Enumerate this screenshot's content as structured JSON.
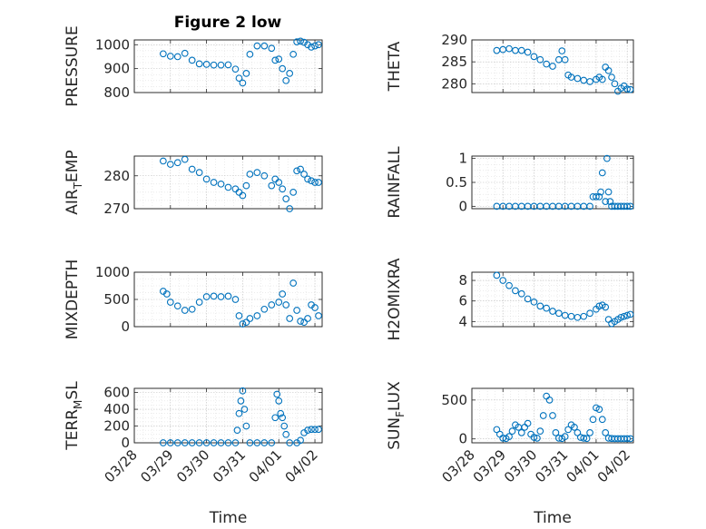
{
  "figure": {
    "title": "Figure 2 low",
    "marker_color": "#0072BD"
  },
  "chart_data": [
    {
      "type": "scatter",
      "ylabel_main": "PRESSURE",
      "ylabel_sub": "",
      "ylabel_tail": "",
      "xlabel": "",
      "xlim": [
        0,
        5.2
      ],
      "ylim": [
        800,
        1020
      ],
      "yticks": [
        800,
        900,
        1000
      ],
      "ytick_labels": [
        "800",
        "900",
        "1000"
      ],
      "xticks": [
        0,
        1,
        2,
        3,
        4,
        5
      ],
      "xtick_labels": [],
      "x": [
        0.8,
        1.0,
        1.2,
        1.4,
        1.6,
        1.8,
        2.0,
        2.2,
        2.4,
        2.6,
        2.8,
        2.9,
        3.0,
        3.1,
        3.2,
        3.4,
        3.6,
        3.8,
        3.9,
        4.0,
        4.1,
        4.2,
        4.3,
        4.4,
        4.5,
        4.6,
        4.7,
        4.8,
        4.9,
        5.0,
        5.1
      ],
      "y": [
        962,
        952,
        950,
        964,
        935,
        920,
        918,
        915,
        915,
        916,
        898,
        860,
        840,
        880,
        960,
        995,
        995,
        985,
        935,
        940,
        900,
        850,
        880,
        960,
        1012,
        1015,
        1010,
        1000,
        990,
        995,
        1000
      ]
    },
    {
      "type": "scatter",
      "ylabel_main": "THETA",
      "ylabel_sub": "",
      "ylabel_tail": "",
      "xlabel": "",
      "xlim": [
        0,
        5.2
      ],
      "ylim": [
        278,
        290
      ],
      "yticks": [
        280,
        285,
        290
      ],
      "ytick_labels": [
        "280",
        "285",
        "290"
      ],
      "xticks": [
        0,
        1,
        2,
        3,
        4,
        5
      ],
      "xtick_labels": [],
      "x": [
        0.8,
        1.0,
        1.2,
        1.4,
        1.6,
        1.8,
        2.0,
        2.2,
        2.4,
        2.6,
        2.8,
        2.9,
        3.0,
        3.1,
        3.2,
        3.4,
        3.6,
        3.8,
        4.0,
        4.1,
        4.2,
        4.3,
        4.4,
        4.5,
        4.6,
        4.7,
        4.8,
        4.9,
        5.0,
        5.1
      ],
      "y": [
        287.6,
        287.8,
        288.0,
        287.6,
        287.6,
        287.2,
        286.2,
        285.5,
        284.5,
        284.0,
        285.5,
        287.5,
        285.5,
        282.0,
        281.5,
        281.2,
        280.8,
        280.5,
        281.0,
        281.5,
        281.0,
        283.8,
        283.0,
        281.5,
        280.0,
        278.3,
        279.0,
        279.5,
        278.8,
        278.7
      ]
    },
    {
      "type": "scatter",
      "ylabel_main": "AIR",
      "ylabel_sub": "T",
      "ylabel_tail": "EMP",
      "xlabel": "",
      "xlim": [
        0,
        5.2
      ],
      "ylim": [
        270,
        286
      ],
      "yticks": [
        270,
        280
      ],
      "ytick_labels": [
        "270",
        "280"
      ],
      "xticks": [
        0,
        1,
        2,
        3,
        4,
        5
      ],
      "xtick_labels": [],
      "x": [
        0.8,
        1.0,
        1.2,
        1.4,
        1.6,
        1.8,
        2.0,
        2.2,
        2.4,
        2.6,
        2.8,
        2.9,
        3.0,
        3.1,
        3.2,
        3.4,
        3.6,
        3.8,
        3.9,
        4.0,
        4.1,
        4.2,
        4.3,
        4.4,
        4.5,
        4.6,
        4.7,
        4.8,
        4.9,
        5.0,
        5.1
      ],
      "y": [
        284.5,
        283.5,
        284.0,
        285.0,
        282.0,
        281.0,
        279.0,
        278.0,
        277.5,
        276.5,
        276.0,
        275.0,
        274.0,
        277.0,
        280.5,
        281.0,
        280.0,
        277.0,
        279.0,
        278.0,
        276.0,
        273.0,
        270.0,
        275.0,
        281.5,
        282.0,
        280.5,
        279.0,
        278.5,
        278.0,
        278.0
      ]
    },
    {
      "type": "scatter",
      "ylabel_main": "RAINFALL",
      "ylabel_sub": "",
      "ylabel_tail": "",
      "xlabel": "",
      "xlim": [
        0,
        5.2
      ],
      "ylim": [
        -0.05,
        1.05
      ],
      "yticks": [
        0,
        0.5,
        1
      ],
      "ytick_labels": [
        "0",
        "0.5",
        "1"
      ],
      "xticks": [
        0,
        1,
        2,
        3,
        4,
        5
      ],
      "xtick_labels": [],
      "x": [
        0.8,
        1.0,
        1.2,
        1.4,
        1.6,
        1.8,
        2.0,
        2.2,
        2.4,
        2.6,
        2.8,
        3.0,
        3.2,
        3.4,
        3.6,
        3.8,
        3.9,
        4.0,
        4.1,
        4.15,
        4.2,
        4.3,
        4.35,
        4.4,
        4.45,
        4.5,
        4.6,
        4.7,
        4.8,
        4.9,
        5.0,
        5.1
      ],
      "y": [
        0,
        0,
        0,
        0,
        0,
        0,
        0,
        0,
        0,
        0,
        0,
        0,
        0,
        0,
        0,
        0,
        0.2,
        0.2,
        0.2,
        0.3,
        0.7,
        0.1,
        1.0,
        0.3,
        0.1,
        0,
        0,
        0,
        0,
        0,
        0,
        0
      ]
    },
    {
      "type": "scatter",
      "ylabel_main": "MIXDEPTH",
      "ylabel_sub": "",
      "ylabel_tail": "",
      "xlabel": "",
      "xlim": [
        0,
        5.2
      ],
      "ylim": [
        0,
        1000
      ],
      "yticks": [
        0,
        500,
        1000
      ],
      "ytick_labels": [
        "0",
        "500",
        "1000"
      ],
      "xticks": [
        0,
        1,
        2,
        3,
        4,
        5
      ],
      "xtick_labels": [],
      "x": [
        0.8,
        0.9,
        1.0,
        1.2,
        1.4,
        1.6,
        1.8,
        2.0,
        2.2,
        2.4,
        2.6,
        2.8,
        2.9,
        3.0,
        3.1,
        3.2,
        3.4,
        3.6,
        3.8,
        4.0,
        4.1,
        4.2,
        4.3,
        4.4,
        4.5,
        4.6,
        4.7,
        4.8,
        4.9,
        5.0,
        5.1
      ],
      "y": [
        650,
        600,
        450,
        380,
        300,
        320,
        450,
        550,
        560,
        550,
        560,
        500,
        200,
        50,
        80,
        150,
        200,
        320,
        400,
        450,
        600,
        400,
        150,
        800,
        300,
        100,
        80,
        150,
        400,
        350,
        200
      ]
    },
    {
      "type": "scatter",
      "ylabel_main": "H2OMIXRA",
      "ylabel_sub": "",
      "ylabel_tail": "",
      "xlabel": "",
      "xlim": [
        0,
        5.2
      ],
      "ylim": [
        3.5,
        8.8
      ],
      "yticks": [
        4,
        6,
        8
      ],
      "ytick_labels": [
        "4",
        "6",
        "8"
      ],
      "xticks": [
        0,
        1,
        2,
        3,
        4,
        5
      ],
      "xtick_labels": [],
      "x": [
        0.8,
        1.0,
        1.2,
        1.4,
        1.6,
        1.8,
        2.0,
        2.2,
        2.4,
        2.6,
        2.8,
        3.0,
        3.2,
        3.4,
        3.6,
        3.8,
        4.0,
        4.1,
        4.2,
        4.3,
        4.4,
        4.5,
        4.6,
        4.7,
        4.8,
        4.9,
        5.0,
        5.1
      ],
      "y": [
        8.5,
        8.0,
        7.5,
        7.0,
        6.7,
        6.2,
        5.9,
        5.5,
        5.3,
        5.0,
        4.8,
        4.6,
        4.5,
        4.4,
        4.5,
        4.8,
        5.2,
        5.5,
        5.6,
        5.4,
        4.2,
        3.8,
        4.0,
        4.2,
        4.4,
        4.5,
        4.6,
        4.7
      ]
    },
    {
      "type": "scatter",
      "ylabel_main": "TERR",
      "ylabel_sub": "M",
      "ylabel_tail": "SL",
      "xlabel": "Time",
      "xlim": [
        0,
        5.2
      ],
      "ylim": [
        0,
        650
      ],
      "yticks": [
        0,
        200,
        400,
        600
      ],
      "ytick_labels": [
        "0",
        "200",
        "400",
        "600"
      ],
      "xticks": [
        0,
        1,
        2,
        3,
        4,
        5
      ],
      "xtick_labels": [
        "03/28",
        "03/29",
        "03/30",
        "03/31",
        "04/01",
        "04/02"
      ],
      "x": [
        0.8,
        1.0,
        1.2,
        1.4,
        1.6,
        1.8,
        2.0,
        2.2,
        2.4,
        2.6,
        2.8,
        2.85,
        2.9,
        2.95,
        3.0,
        3.05,
        3.1,
        3.2,
        3.4,
        3.6,
        3.8,
        3.9,
        3.95,
        4.0,
        4.05,
        4.1,
        4.15,
        4.2,
        4.3,
        4.5,
        4.6,
        4.7,
        4.8,
        4.9,
        5.0,
        5.1
      ],
      "y": [
        0,
        0,
        0,
        0,
        0,
        0,
        0,
        0,
        0,
        0,
        0,
        150,
        350,
        500,
        620,
        400,
        200,
        0,
        0,
        0,
        0,
        300,
        580,
        500,
        350,
        300,
        200,
        100,
        0,
        0,
        30,
        120,
        150,
        160,
        160,
        160
      ]
    },
    {
      "type": "scatter",
      "ylabel_main": "SUN",
      "ylabel_sub": "F",
      "ylabel_tail": "LUX",
      "xlabel": "Time",
      "xlim": [
        0,
        5.2
      ],
      "ylim": [
        -50,
        650
      ],
      "yticks": [
        0,
        500
      ],
      "ytick_labels": [
        "0",
        "500"
      ],
      "xticks": [
        0,
        1,
        2,
        3,
        4,
        5
      ],
      "xtick_labels": [
        "03/28",
        "03/29",
        "03/30",
        "03/31",
        "04/01",
        "04/02"
      ],
      "x": [
        0.8,
        0.9,
        1.0,
        1.1,
        1.2,
        1.3,
        1.4,
        1.5,
        1.6,
        1.7,
        1.8,
        1.9,
        2.0,
        2.1,
        2.2,
        2.3,
        2.4,
        2.5,
        2.6,
        2.7,
        2.8,
        2.9,
        3.0,
        3.1,
        3.2,
        3.3,
        3.4,
        3.5,
        3.6,
        3.7,
        3.8,
        3.9,
        4.0,
        4.1,
        4.2,
        4.3,
        4.4,
        4.5,
        4.6,
        4.7,
        4.8,
        4.9,
        5.0,
        5.1
      ],
      "y": [
        120,
        60,
        10,
        5,
        30,
        100,
        180,
        150,
        80,
        150,
        200,
        60,
        20,
        10,
        100,
        300,
        550,
        500,
        300,
        80,
        10,
        5,
        30,
        120,
        180,
        150,
        80,
        20,
        10,
        5,
        80,
        250,
        400,
        380,
        250,
        80,
        10,
        5,
        3,
        3,
        3,
        3,
        3,
        3
      ]
    }
  ]
}
